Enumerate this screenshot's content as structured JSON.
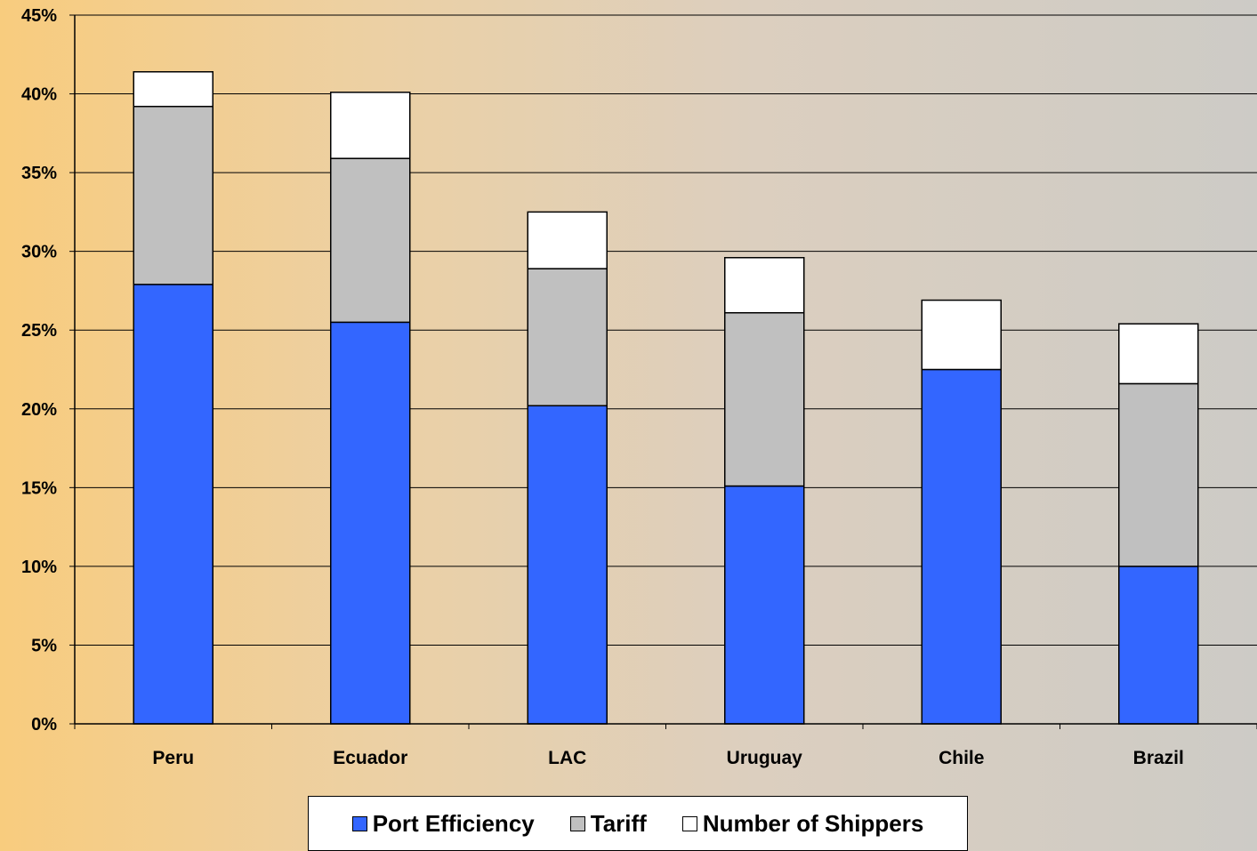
{
  "chart_data": {
    "type": "bar",
    "stacked": true,
    "categories": [
      "Peru",
      "Ecuador",
      "LAC",
      "Uruguay",
      "Chile",
      "Brazil"
    ],
    "series": [
      {
        "name": "Port Efficiency",
        "color": "#3366ff",
        "values": [
          27.9,
          25.5,
          20.2,
          15.1,
          22.5,
          10.0
        ]
      },
      {
        "name": "Tariff",
        "color": "#c0c0c0",
        "values": [
          11.3,
          10.4,
          8.7,
          11.0,
          0.0,
          11.6
        ]
      },
      {
        "name": "Number of Shippers",
        "color": "#ffffff",
        "values": [
          2.2,
          4.2,
          3.6,
          3.5,
          4.4,
          3.8
        ]
      }
    ],
    "ylim": [
      0,
      45
    ],
    "yticks": [
      0,
      5,
      10,
      15,
      20,
      25,
      30,
      35,
      40,
      45
    ],
    "ytick_format": "percent",
    "grid": true,
    "legend_position": "bottom"
  }
}
